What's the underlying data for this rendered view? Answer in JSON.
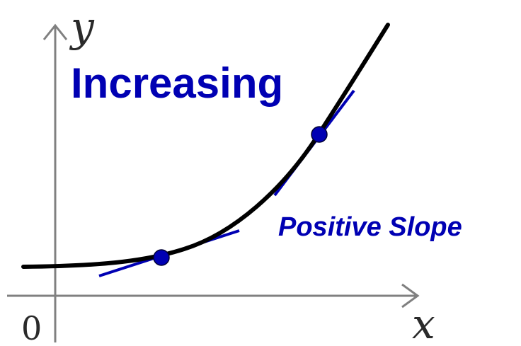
{
  "labels": {
    "y_axis": "y",
    "x_axis": "x",
    "origin": "0",
    "title": "Increasing",
    "slope_note": "Positive Slope"
  },
  "colors": {
    "accent": "#0000b3",
    "curve": "#000000",
    "axes": "#808080"
  }
}
